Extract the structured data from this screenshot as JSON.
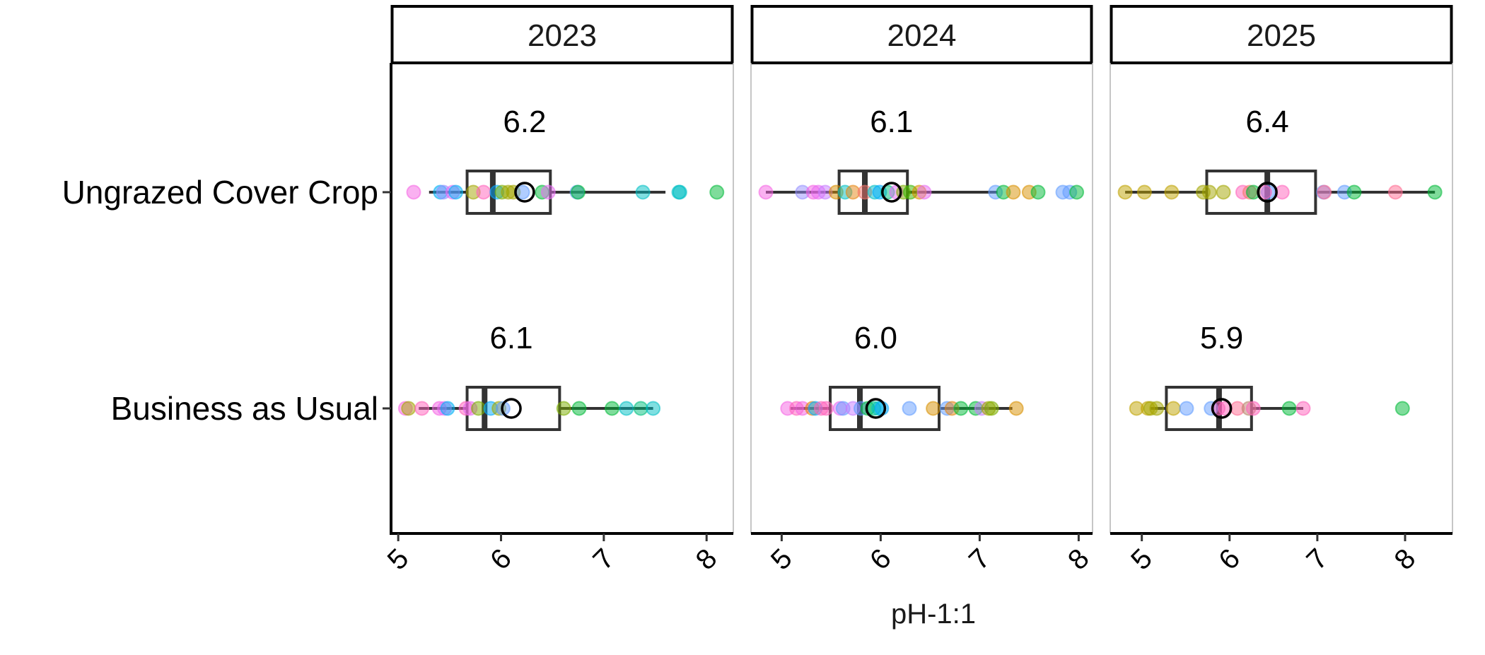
{
  "chart_data": {
    "type": "boxplot",
    "title": "",
    "xlabel": "pH-1:1",
    "ylabel": "",
    "facet_by": "year",
    "facets": [
      "2023",
      "2024",
      "2025"
    ],
    "categories": [
      "Ungrazed Cover Crop",
      "Business as Usual"
    ],
    "x_ticks": [
      5,
      6,
      7,
      8
    ],
    "grid": false,
    "legend": "none",
    "panels": [
      {
        "facet": "2023",
        "xlim": [
          4.93,
          8.26
        ],
        "groups": [
          {
            "category": "Ungrazed Cover Crop",
            "mean_label": "6.2",
            "mean": 6.23,
            "whisker_low": 5.3,
            "q1": 5.67,
            "median": 5.92,
            "q3": 6.48,
            "whisker_high": 7.6,
            "points": [
              {
                "x": 5.15,
                "color": "#F564E3"
              },
              {
                "x": 5.41,
                "color": "#00B0F6"
              },
              {
                "x": 5.44,
                "color": "#9590FF"
              },
              {
                "x": 5.53,
                "color": "#E76BF3"
              },
              {
                "x": 5.56,
                "color": "#00B0F6"
              },
              {
                "x": 5.73,
                "color": "#A3A500"
              },
              {
                "x": 5.83,
                "color": "#FF62BC"
              },
              {
                "x": 5.96,
                "color": "#00A9FF"
              },
              {
                "x": 6.01,
                "color": "#7CAE00"
              },
              {
                "x": 6.07,
                "color": "#A3A500"
              },
              {
                "x": 6.12,
                "color": "#A3A500"
              },
              {
                "x": 6.21,
                "color": "#619CFF"
              },
              {
                "x": 6.4,
                "color": "#00BA38"
              },
              {
                "x": 6.46,
                "color": "#E76BF3"
              },
              {
                "x": 6.74,
                "color": "#619CFF"
              },
              {
                "x": 6.75,
                "color": "#00BA38"
              },
              {
                "x": 7.38,
                "color": "#00BFC4"
              },
              {
                "x": 7.73,
                "color": "#00BFC4"
              },
              {
                "x": 7.74,
                "color": "#00BFC4"
              },
              {
                "x": 8.1,
                "color": "#00BA38"
              }
            ]
          },
          {
            "category": "Business as Usual",
            "mean_label": "6.1",
            "mean": 6.1,
            "whisker_low": 5.2,
            "q1": 5.67,
            "median": 5.84,
            "q3": 6.57,
            "whisker_high": 7.48,
            "points": [
              {
                "x": 5.07,
                "color": "#F564E3"
              },
              {
                "x": 5.1,
                "color": "#A3A500"
              },
              {
                "x": 5.23,
                "color": "#FF62BC"
              },
              {
                "x": 5.4,
                "color": "#F564E3"
              },
              {
                "x": 5.45,
                "color": "#E76BF3"
              },
              {
                "x": 5.48,
                "color": "#00B0F6"
              },
              {
                "x": 5.66,
                "color": "#FF62BC"
              },
              {
                "x": 5.7,
                "color": "#E76BF3"
              },
              {
                "x": 5.78,
                "color": "#7CAE00"
              },
              {
                "x": 5.9,
                "color": "#00A9FF"
              },
              {
                "x": 5.98,
                "color": "#A3A500"
              },
              {
                "x": 6.02,
                "color": "#619CFF"
              },
              {
                "x": 6.61,
                "color": "#7CAE00"
              },
              {
                "x": 6.76,
                "color": "#00BA38"
              },
              {
                "x": 7.08,
                "color": "#00BA38"
              },
              {
                "x": 7.22,
                "color": "#00BFC4"
              },
              {
                "x": 7.36,
                "color": "#00BF7D"
              },
              {
                "x": 7.48,
                "color": "#00BFC4"
              }
            ]
          }
        ]
      },
      {
        "facet": "2024",
        "xlim": [
          4.69,
          8.14
        ],
        "groups": [
          {
            "category": "Ungrazed Cover Crop",
            "mean_label": "6.1",
            "mean": 6.11,
            "whisker_low": 4.84,
            "q1": 5.58,
            "median": 5.84,
            "q3": 6.27,
            "whisker_high": 7.18,
            "points": [
              {
                "x": 4.84,
                "color": "#F564E3"
              },
              {
                "x": 5.21,
                "color": "#9590FF"
              },
              {
                "x": 5.32,
                "color": "#F564E3"
              },
              {
                "x": 5.37,
                "color": "#E76BF3"
              },
              {
                "x": 5.44,
                "color": "#C77CFF"
              },
              {
                "x": 5.55,
                "color": "#D89000"
              },
              {
                "x": 5.64,
                "color": "#00BFC4"
              },
              {
                "x": 5.72,
                "color": "#E68613"
              },
              {
                "x": 5.84,
                "color": "#F8766D"
              },
              {
                "x": 5.94,
                "color": "#00BFC4"
              },
              {
                "x": 5.99,
                "color": "#00A9FF"
              },
              {
                "x": 6.07,
                "color": "#00BF7D"
              },
              {
                "x": 6.16,
                "color": "#E76BF3"
              },
              {
                "x": 6.23,
                "color": "#7CAE00"
              },
              {
                "x": 6.3,
                "color": "#39B600"
              },
              {
                "x": 6.39,
                "color": "#D89000"
              },
              {
                "x": 6.44,
                "color": "#E76BF3"
              },
              {
                "x": 7.16,
                "color": "#619CFF"
              },
              {
                "x": 7.24,
                "color": "#00BA38"
              },
              {
                "x": 7.34,
                "color": "#D89000"
              },
              {
                "x": 7.5,
                "color": "#D89000"
              },
              {
                "x": 7.59,
                "color": "#00BA38"
              },
              {
                "x": 7.84,
                "color": "#619CFF"
              },
              {
                "x": 7.91,
                "color": "#619CFF"
              },
              {
                "x": 7.98,
                "color": "#00BA38"
              }
            ]
          },
          {
            "category": "Business as Usual",
            "mean_label": "6.0",
            "mean": 5.95,
            "whisker_low": 5.09,
            "q1": 5.49,
            "median": 5.79,
            "q3": 6.59,
            "whisker_high": 7.33,
            "points": [
              {
                "x": 5.06,
                "color": "#F564E3"
              },
              {
                "x": 5.15,
                "color": "#FF62BC"
              },
              {
                "x": 5.21,
                "color": "#F564E3"
              },
              {
                "x": 5.31,
                "color": "#E68613"
              },
              {
                "x": 5.34,
                "color": "#00A9FF"
              },
              {
                "x": 5.4,
                "color": "#FF62BC"
              },
              {
                "x": 5.45,
                "color": "#FF62BC"
              },
              {
                "x": 5.59,
                "color": "#E76BF3"
              },
              {
                "x": 5.62,
                "color": "#619CFF"
              },
              {
                "x": 5.72,
                "color": "#C77CFF"
              },
              {
                "x": 5.8,
                "color": "#619CFF"
              },
              {
                "x": 5.87,
                "color": "#00BA38"
              },
              {
                "x": 5.93,
                "color": "#00BF7D"
              },
              {
                "x": 5.98,
                "color": "#00BFC4"
              },
              {
                "x": 6.01,
                "color": "#00A9FF"
              },
              {
                "x": 6.29,
                "color": "#619CFF"
              },
              {
                "x": 6.53,
                "color": "#D89000"
              },
              {
                "x": 6.67,
                "color": "#619CFF"
              },
              {
                "x": 6.72,
                "color": "#E68613"
              },
              {
                "x": 6.81,
                "color": "#00BA38"
              },
              {
                "x": 6.96,
                "color": "#00BA38"
              },
              {
                "x": 7.02,
                "color": "#C77CFF"
              },
              {
                "x": 7.09,
                "color": "#A3A500"
              },
              {
                "x": 7.12,
                "color": "#7CAE00"
              },
              {
                "x": 7.37,
                "color": "#D89000"
              }
            ]
          }
        ]
      },
      {
        "facet": "2025",
        "xlim": [
          4.64,
          8.54
        ],
        "groups": [
          {
            "category": "Ungrazed Cover Crop",
            "mean_label": "6.4",
            "mean": 6.43,
            "whisker_low": 4.81,
            "q1": 5.74,
            "median": 6.43,
            "q3": 6.98,
            "whisker_high": 8.34,
            "points": [
              {
                "x": 4.81,
                "color": "#BFA300"
              },
              {
                "x": 5.03,
                "color": "#BFA300"
              },
              {
                "x": 5.34,
                "color": "#BFA300"
              },
              {
                "x": 5.7,
                "color": "#A3A500"
              },
              {
                "x": 5.77,
                "color": "#A3A500"
              },
              {
                "x": 5.93,
                "color": "#A3A500"
              },
              {
                "x": 6.15,
                "color": "#FF62BC"
              },
              {
                "x": 6.23,
                "color": "#F8766D"
              },
              {
                "x": 6.27,
                "color": "#00BA38"
              },
              {
                "x": 6.44,
                "color": "#619CFF"
              },
              {
                "x": 6.4,
                "color": "#FF62BC"
              },
              {
                "x": 6.6,
                "color": "#FF62BC"
              },
              {
                "x": 7.07,
                "color": "#619CFF"
              },
              {
                "x": 7.08,
                "color": "#FF6C91"
              },
              {
                "x": 7.31,
                "color": "#619CFF"
              },
              {
                "x": 7.42,
                "color": "#00BA38"
              },
              {
                "x": 7.89,
                "color": "#FF6C91"
              },
              {
                "x": 8.34,
                "color": "#00BA38"
              }
            ]
          },
          {
            "category": "Business as Usual",
            "mean_label": "5.9",
            "mean": 5.91,
            "whisker_low": 5.1,
            "q1": 5.28,
            "median": 5.88,
            "q3": 6.25,
            "whisker_high": 6.84,
            "points": [
              {
                "x": 4.94,
                "color": "#BFA300"
              },
              {
                "x": 5.07,
                "color": "#BFA300"
              },
              {
                "x": 5.1,
                "color": "#A3A500"
              },
              {
                "x": 5.17,
                "color": "#A3A500"
              },
              {
                "x": 5.36,
                "color": "#BFA300"
              },
              {
                "x": 5.51,
                "color": "#619CFF"
              },
              {
                "x": 5.79,
                "color": "#619CFF"
              },
              {
                "x": 5.87,
                "color": "#FF62BC"
              },
              {
                "x": 5.95,
                "color": "#FF62BC"
              },
              {
                "x": 6.09,
                "color": "#FF6C91"
              },
              {
                "x": 6.22,
                "color": "#B8856A"
              },
              {
                "x": 6.27,
                "color": "#FF62BC"
              },
              {
                "x": 6.68,
                "color": "#00BA38"
              },
              {
                "x": 6.84,
                "color": "#FF62BC"
              },
              {
                "x": 7.97,
                "color": "#00BA38"
              }
            ]
          }
        ]
      }
    ]
  },
  "labels": {
    "x_title": "pH-1:1",
    "y_categories": [
      "Ungrazed Cover Crop",
      "Business as Usual"
    ],
    "strips": [
      "2023",
      "2024",
      "2025"
    ],
    "tick_labels": [
      "5",
      "6",
      "7",
      "8"
    ]
  }
}
